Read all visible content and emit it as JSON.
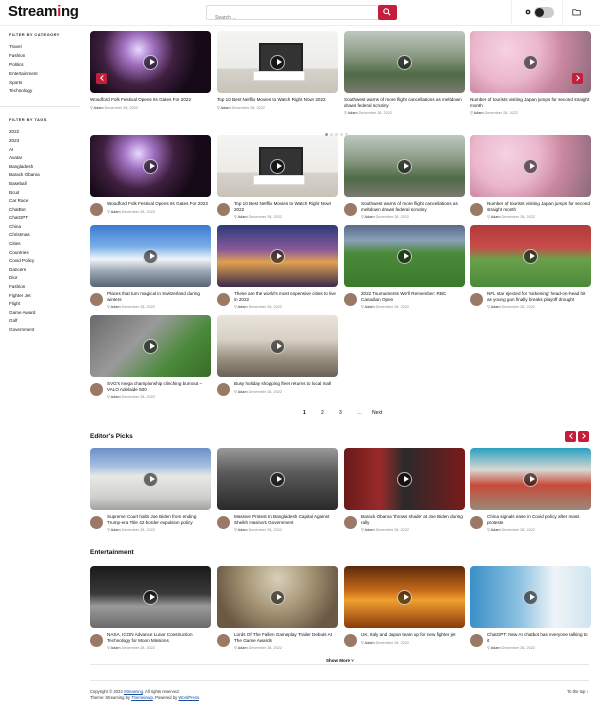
{
  "header": {
    "logo_prefix": "Stream",
    "logo_mid": "i",
    "logo_suffix": "ng",
    "search_placeholder": "Search ...",
    "icons": [
      "search-icon",
      "sun-icon",
      "theme-toggle",
      "folder-icon"
    ]
  },
  "sidebar": {
    "category_heading": "FILTER BY CATEGORY",
    "categories": [
      "Travel",
      "Fashion",
      "Politics",
      "Entertainment",
      "Sports",
      "Technology"
    ],
    "tag_heading": "FILTER BY TAGS",
    "tags": [
      "2022",
      "2023",
      "AI",
      "Avatar",
      "Bangladesh",
      "Barack Obama",
      "Baseball",
      "Bcuit",
      "Car Race",
      "ChatBot",
      "ChatGPT",
      "China",
      "Christmas",
      "Cities",
      "Countries",
      "Covid Policy",
      "Dancers",
      "Dior",
      "Fashion",
      "Fighter Jet",
      "Flight",
      "Game Award",
      "Golf",
      "Government"
    ]
  },
  "meta": {
    "author": "Adam",
    "date": "December 28, 2022"
  },
  "slider": {
    "items": [
      {
        "title": "Woodford Folk Festival Opens Its Gates For 2022",
        "image": "festival"
      },
      {
        "title": "Top 10 Best Netflix Movies to Watch Right Now! 2022",
        "image": "tv"
      },
      {
        "title": "Southwest warns of more flight cancellations as meltdown draws federal scrutiny",
        "image": "airport"
      },
      {
        "title": "Number of tourists visiting Japan jumps for second straight month",
        "image": "sakura"
      }
    ]
  },
  "grid": {
    "items": [
      {
        "title": "Woodford Folk Festival Opens Its Gates For 2022",
        "image": "festival"
      },
      {
        "title": "Top 10 Best Netflix Movies to Watch Right Now! 2022",
        "image": "tv"
      },
      {
        "title": "Southwest warns of more flight cancellations as meltdown draws federal scrutiny",
        "image": "airport"
      },
      {
        "title": "Number of tourists visiting Japan jumps for second straight month",
        "image": "sakura"
      },
      {
        "title": "Places that turn magical in Switzerland during winters",
        "image": "swiss"
      },
      {
        "title": "These are the world's most expensive cities to live in 2022",
        "image": "city"
      },
      {
        "title": "2022 Tournaments We'll Remember: RBC Canadian Open",
        "image": "field"
      },
      {
        "title": "NFL star ejected for 'sickening' head-on-head hit as young gun finally breaks playoff drought",
        "image": "rugby"
      },
      {
        "title": "SVG's mega championship clinching burnout – VALO Adelaide 500",
        "image": "racing"
      },
      {
        "title": "Busy holiday shopping fleet returns to local mall",
        "image": "shop"
      }
    ]
  },
  "pagination": {
    "pages": [
      "1",
      "2",
      "3",
      "…"
    ],
    "next": "Next"
  },
  "editors_picks": {
    "heading": "Editor's Picks",
    "items": [
      {
        "title": "Supreme Court halts Joe Biden from ending Trump-era Title 42 border expulsion policy",
        "image": "court"
      },
      {
        "title": "Massive Protest In Bangladesh Capital Against Sheikh Hasina's Government",
        "image": "protest"
      },
      {
        "title": "Barack Obama 'throws shade' at Joe Biden during rally",
        "image": "obama"
      },
      {
        "title": "China signals ease in Covid policy after mass protests",
        "image": "china"
      }
    ]
  },
  "entertainment": {
    "heading": "Entertainment",
    "items": [
      {
        "title": "NASA, ICON Advance Lunar Construction Technology for Moon Missions",
        "image": "moon"
      },
      {
        "title": "Lords Of The Fallen Gameplay Trailer Debuts At The Game Awards",
        "image": "horse"
      },
      {
        "title": "UK, Italy and Japan team up for new fighter jet",
        "image": "jet"
      },
      {
        "title": "ChatGPT: New AI chatbot has everyone talking to it",
        "image": "robot"
      }
    ],
    "show_more": "Show More"
  },
  "footer": {
    "copyright": "Copyright © 2023",
    "site": "Streaming",
    "rights": ". All rights reserved.",
    "theme_prefix": "Theme: Streaming by",
    "themeinwp": "Themeinwp",
    "powered_prefix": ". Powered by",
    "wordpress": "WordPress",
    "to_top": "To the top ↑"
  },
  "colors": {
    "accent": "#c41e3a",
    "text": "#111111",
    "muted": "#888888"
  }
}
